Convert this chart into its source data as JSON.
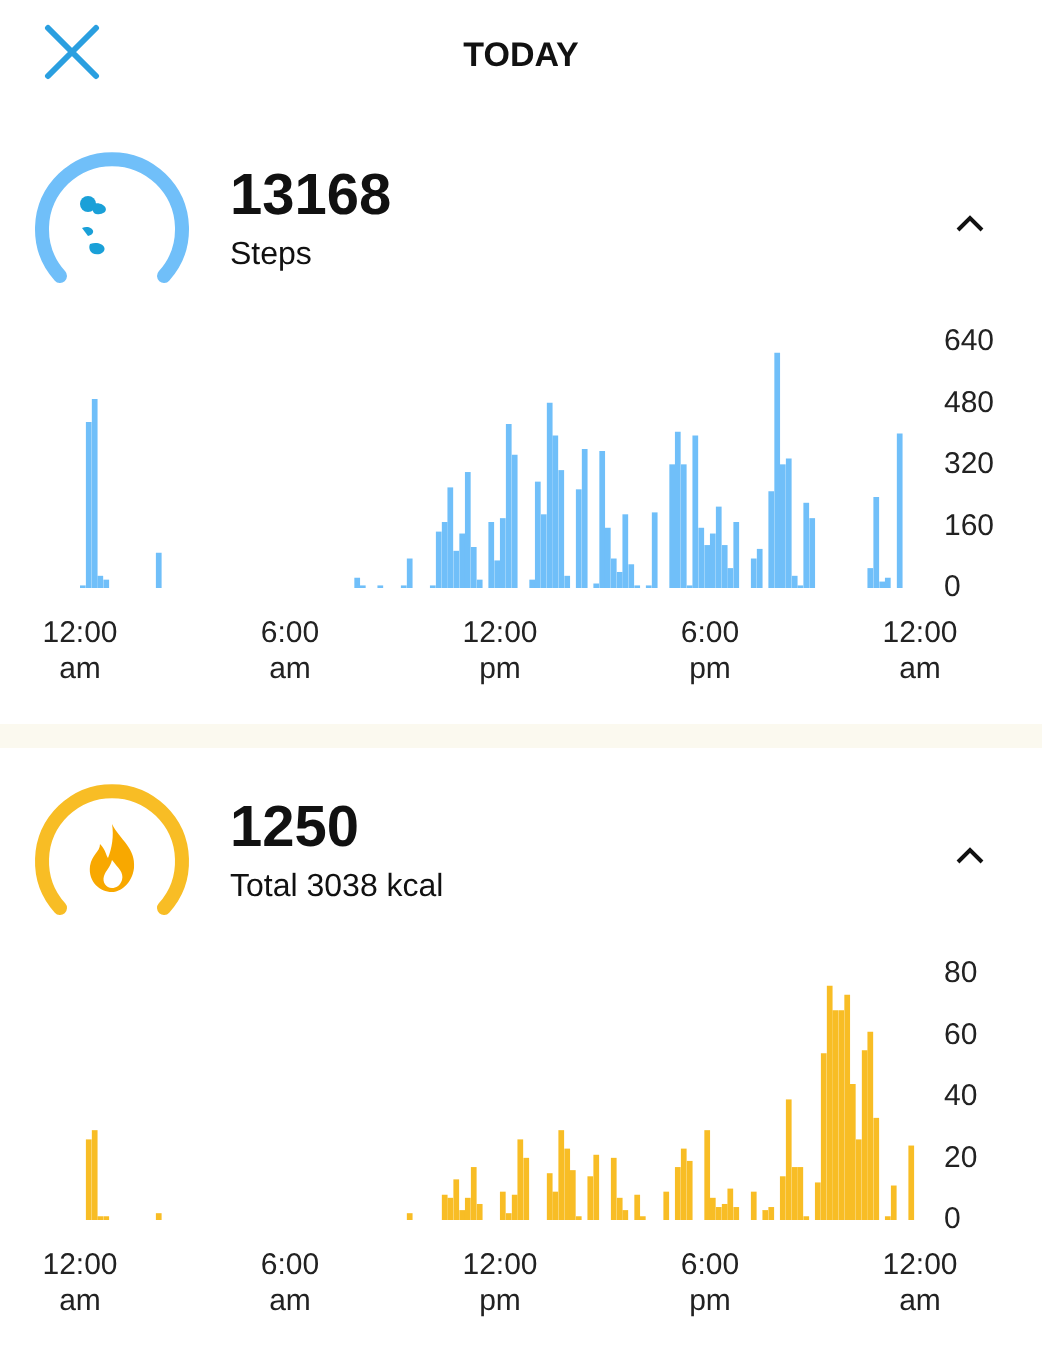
{
  "chart_data": [
    {
      "type": "bar",
      "title": "13168",
      "subtitle": "Steps",
      "annotations": [
        "TODAY"
      ],
      "color": "#70bff9",
      "grid": false,
      "x": [
        0.08,
        0.25,
        0.42,
        0.58,
        0.75,
        2.25,
        7.92,
        8.08,
        8.58,
        9.25,
        9.42,
        10.08,
        10.25,
        10.42,
        10.58,
        10.75,
        10.92,
        11.08,
        11.25,
        11.42,
        11.75,
        11.92,
        12.08,
        12.25,
        12.42,
        12.92,
        13.08,
        13.25,
        13.42,
        13.58,
        13.75,
        13.92,
        14.25,
        14.42,
        14.75,
        14.92,
        15.08,
        15.25,
        15.42,
        15.58,
        15.75,
        15.92,
        16.25,
        16.42,
        16.92,
        17.08,
        17.25,
        17.42,
        17.58,
        17.75,
        17.92,
        18.08,
        18.25,
        18.42,
        18.58,
        18.75,
        19.25,
        19.42,
        19.75,
        19.92,
        20.08,
        20.25,
        20.42,
        20.58,
        20.75,
        20.92,
        22.58,
        22.75,
        22.92,
        23.08,
        23.42
      ],
      "values": [
        5,
        430,
        490,
        30,
        20,
        90,
        25,
        5,
        5,
        5,
        75,
        5,
        145,
        170,
        260,
        95,
        140,
        300,
        105,
        20,
        170,
        70,
        180,
        425,
        345,
        20,
        275,
        190,
        480,
        395,
        305,
        30,
        255,
        360,
        10,
        355,
        155,
        75,
        40,
        190,
        60,
        5,
        5,
        195,
        320,
        405,
        320,
        5,
        395,
        155,
        110,
        140,
        210,
        110,
        50,
        170,
        75,
        100,
        250,
        610,
        320,
        335,
        30,
        5,
        220,
        180,
        50,
        235,
        15,
        25,
        400
      ],
      "xlim": [
        0,
        24
      ],
      "xticks": [
        {
          "value": 0,
          "label": "12:00 am"
        },
        {
          "value": 6,
          "label": "6:00 am"
        },
        {
          "value": 12,
          "label": "12:00 pm"
        },
        {
          "value": 18,
          "label": "6:00 pm"
        },
        {
          "value": 24,
          "label": "12:00 am"
        }
      ],
      "ylim": [
        0,
        640
      ],
      "yticks": [
        0,
        160,
        320,
        480,
        640
      ]
    },
    {
      "type": "bar",
      "title": "1250",
      "subtitle": "Total 3038 kcal",
      "color": "#f8bd25",
      "grid": false,
      "x": [
        0.25,
        0.42,
        0.58,
        0.75,
        2.25,
        9.42,
        10.42,
        10.58,
        10.75,
        10.92,
        11.08,
        11.25,
        11.42,
        12.08,
        12.25,
        12.42,
        12.58,
        12.75,
        13.42,
        13.58,
        13.75,
        13.92,
        14.08,
        14.25,
        14.58,
        14.75,
        15.25,
        15.42,
        15.58,
        15.92,
        16.08,
        16.75,
        17.08,
        17.25,
        17.42,
        17.92,
        18.08,
        18.25,
        18.42,
        18.58,
        18.75,
        19.25,
        19.58,
        19.75,
        20.08,
        20.25,
        20.42,
        20.58,
        20.75,
        21.08,
        21.25,
        21.42,
        21.58,
        21.75,
        21.92,
        22.08,
        22.25,
        22.42,
        22.58,
        22.75,
        23.08,
        23.25,
        23.75
      ],
      "values": [
        26,
        29,
        1,
        1,
        2,
        2,
        8,
        7,
        13,
        3,
        7,
        17,
        5,
        9,
        2,
        8,
        26,
        20,
        15,
        9,
        29,
        23,
        16,
        1,
        14,
        21,
        20,
        7,
        3,
        8,
        1,
        9,
        17,
        23,
        19,
        29,
        7,
        4,
        5,
        10,
        4,
        9,
        3,
        4,
        14,
        39,
        17,
        17,
        1,
        12,
        54,
        76,
        68,
        68,
        73,
        44,
        26,
        55,
        61,
        33,
        1,
        11,
        24
      ],
      "xlim": [
        0,
        24
      ],
      "xticks": [
        {
          "value": 0,
          "label": "12:00 am"
        },
        {
          "value": 6,
          "label": "6:00 am"
        },
        {
          "value": 12,
          "label": "12:00 pm"
        },
        {
          "value": 18,
          "label": "6:00 pm"
        },
        {
          "value": 24,
          "label": "12:00 am"
        }
      ],
      "ylim": [
        0,
        80
      ],
      "yticks": [
        0,
        20,
        40,
        60,
        80
      ]
    }
  ]
}
